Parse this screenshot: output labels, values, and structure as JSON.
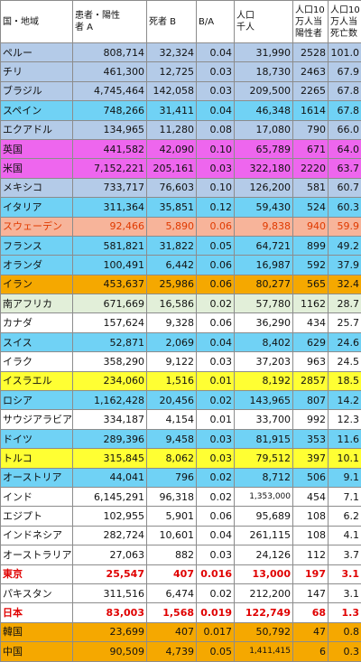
{
  "headers": [
    [
      "国・地域"
    ],
    [
      "患者・陽性",
      "者 A"
    ],
    [
      "死者 B"
    ],
    [
      "B/A"
    ],
    [
      "人口",
      "千人"
    ],
    [
      "人口10",
      "万人当",
      "陽性者"
    ],
    [
      "人口10",
      "万人当",
      "死亡数"
    ]
  ],
  "rows": [
    {
      "color": "#b4cbe8",
      "cells": [
        "ペルー",
        "808,714",
        "32,324",
        "0.04",
        "31,990",
        "2528",
        "101.0"
      ]
    },
    {
      "color": "#b4cbe8",
      "cells": [
        "チリ",
        "461,300",
        "12,725",
        "0.03",
        "18,730",
        "2463",
        "67.9"
      ]
    },
    {
      "color": "#b4cbe8",
      "cells": [
        "ブラジル",
        "4,745,464",
        "142,058",
        "0.03",
        "209,500",
        "2265",
        "67.8"
      ]
    },
    {
      "color": "#70d2f5",
      "cells": [
        "スペイン",
        "748,266",
        "31,411",
        "0.04",
        "46,348",
        "1614",
        "67.8"
      ]
    },
    {
      "color": "#b4cbe8",
      "cells": [
        "エクアドル",
        "134,965",
        "11,280",
        "0.08",
        "17,080",
        "790",
        "66.0"
      ]
    },
    {
      "color": "#ee66ee",
      "cells": [
        "英国",
        "441,582",
        "42,090",
        "0.10",
        "65,789",
        "671",
        "64.0"
      ]
    },
    {
      "color": "#ee66ee",
      "cells": [
        "米国",
        "7,152,221",
        "205,161",
        "0.03",
        "322,180",
        "2220",
        "63.7"
      ]
    },
    {
      "color": "#b4cbe8",
      "cells": [
        "メキシコ",
        "733,717",
        "76,603",
        "0.10",
        "126,200",
        "581",
        "60.7"
      ]
    },
    {
      "color": "#70d2f5",
      "cells": [
        "イタリア",
        "311,364",
        "35,851",
        "0.12",
        "59,430",
        "524",
        "60.3"
      ]
    },
    {
      "color": "#f7b49a",
      "text": "#e03a00",
      "cells": [
        "スウェーデン",
        "92,466",
        "5,890",
        "0.06",
        "9,838",
        "940",
        "59.9"
      ]
    },
    {
      "color": "#70d2f5",
      "cells": [
        "フランス",
        "581,821",
        "31,822",
        "0.05",
        "64,721",
        "899",
        "49.2"
      ]
    },
    {
      "color": "#70d2f5",
      "cells": [
        "オランダ",
        "100,491",
        "6,442",
        "0.06",
        "16,987",
        "592",
        "37.9"
      ]
    },
    {
      "color": "#f5a800",
      "cells": [
        "イラン",
        "453,637",
        "25,986",
        "0.06",
        "80,277",
        "565",
        "32.4"
      ]
    },
    {
      "color": "#e2efd9",
      "cells": [
        "南アフリカ",
        "671,669",
        "16,586",
        "0.02",
        "57,780",
        "1162",
        "28.7"
      ]
    },
    {
      "color": "#ffffff",
      "cells": [
        "カナダ",
        "157,624",
        "9,328",
        "0.06",
        "36,290",
        "434",
        "25.7"
      ]
    },
    {
      "color": "#70d2f5",
      "cells": [
        "スイス",
        "52,871",
        "2,069",
        "0.04",
        "8,402",
        "629",
        "24.6"
      ]
    },
    {
      "color": "#ffffff",
      "cells": [
        "イラク",
        "358,290",
        "9,122",
        "0.03",
        "37,203",
        "963",
        "24.5"
      ]
    },
    {
      "color": "#ffff33",
      "cells": [
        "イスラエル",
        "234,060",
        "1,516",
        "0.01",
        "8,192",
        "2857",
        "18.5"
      ]
    },
    {
      "color": "#70d2f5",
      "cells": [
        "ロシア",
        "1,162,428",
        "20,456",
        "0.02",
        "143,965",
        "807",
        "14.2"
      ]
    },
    {
      "color": "#ffffff",
      "cells": [
        "サウジアラビア",
        "334,187",
        "4,154",
        "0.01",
        "33,700",
        "992",
        "12.3"
      ]
    },
    {
      "color": "#70d2f5",
      "cells": [
        "ドイツ",
        "289,396",
        "9,458",
        "0.03",
        "81,915",
        "353",
        "11.6"
      ]
    },
    {
      "color": "#ffff33",
      "cells": [
        "トルコ",
        "315,845",
        "8,062",
        "0.03",
        "79,512",
        "397",
        "10.1"
      ]
    },
    {
      "color": "#70d2f5",
      "cells": [
        "オーストリア",
        "44,041",
        "796",
        "0.02",
        "8,712",
        "506",
        "9.1"
      ]
    },
    {
      "color": "#ffffff",
      "cells": [
        "インド",
        "6,145,291",
        "96,318",
        "0.02",
        "1,353,000",
        "454",
        "7.1"
      ]
    },
    {
      "color": "#ffffff",
      "cells": [
        "エジプト",
        "102,955",
        "5,901",
        "0.06",
        "95,689",
        "108",
        "6.2"
      ]
    },
    {
      "color": "#ffffff",
      "cells": [
        "インドネシア",
        "282,724",
        "10,601",
        "0.04",
        "261,115",
        "108",
        "4.1"
      ]
    },
    {
      "color": "#ffffff",
      "cells": [
        "オーストラリア",
        "27,063",
        "882",
        "0.03",
        "24,126",
        "112",
        "3.7"
      ]
    },
    {
      "color": "#ffffff",
      "text": "#e00000",
      "bold": true,
      "cells": [
        "東京",
        "25,547",
        "407",
        "0.016",
        "13,000",
        "197",
        "3.1"
      ]
    },
    {
      "color": "#ffffff",
      "cells": [
        "パキスタン",
        "311,516",
        "6,474",
        "0.02",
        "212,200",
        "147",
        "3.1"
      ]
    },
    {
      "color": "#ffffff",
      "text": "#e00000",
      "bold": true,
      "cells": [
        "日本",
        "83,003",
        "1,568",
        "0.019",
        "122,749",
        "68",
        "1.3"
      ]
    },
    {
      "color": "#f5a800",
      "cells": [
        "韓国",
        "23,699",
        "407",
        "0.017",
        "50,792",
        "47",
        "0.8"
      ]
    },
    {
      "color": "#f5a800",
      "cells": [
        "中国",
        "90,509",
        "4,739",
        "0.05",
        "1,411,415",
        "6",
        "0.3"
      ]
    }
  ]
}
